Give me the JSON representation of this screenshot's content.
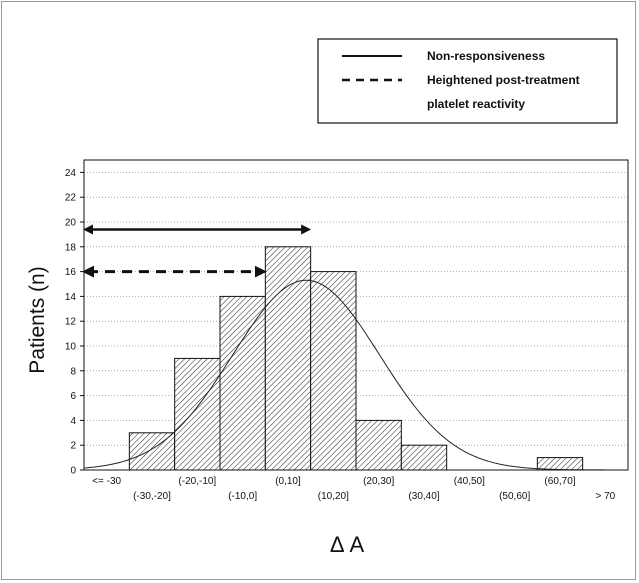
{
  "chart_data": {
    "type": "bar",
    "title": "",
    "xlabel": "Δ A",
    "ylabel": "Patients (n)",
    "ylim": [
      0,
      25
    ],
    "yticks": [
      0,
      2,
      4,
      6,
      8,
      10,
      12,
      14,
      16,
      18,
      20,
      22,
      24
    ],
    "grid": "horizontal dotted",
    "categories": [
      "<= -30",
      "(-30,-20]",
      "(-20,-10]",
      "(-10,0]",
      "(0,10]",
      "(10,20]",
      "(20,30]",
      "(30,40]",
      "(40,50]",
      "(50,60]",
      "(60,70]",
      "> 70"
    ],
    "values": [
      0,
      3,
      9,
      14,
      18,
      16,
      4,
      2,
      0,
      0,
      1,
      0
    ],
    "fitted_curve": {
      "type": "normal",
      "peak": 15.3,
      "peak_category_index": 4.4,
      "sd_categories": 1.62
    },
    "arrows": [
      {
        "series": "Non-responsiveness",
        "style": "solid",
        "y": 19.4,
        "from_category_index": 0,
        "to_category_index": 4.9
      },
      {
        "series": "Heightened post-treatment platelet reactivity",
        "style": "dashed",
        "y": 16.0,
        "from_category_index": 0,
        "to_category_index": 3.9
      }
    ],
    "legend": {
      "position": "top-right",
      "entries": [
        {
          "label": "Non-responsiveness",
          "style": "solid"
        },
        {
          "label": "Heightened post-treatment",
          "style": "dashed"
        },
        {
          "label": "platelet reactivity",
          "style": "none"
        }
      ]
    }
  }
}
